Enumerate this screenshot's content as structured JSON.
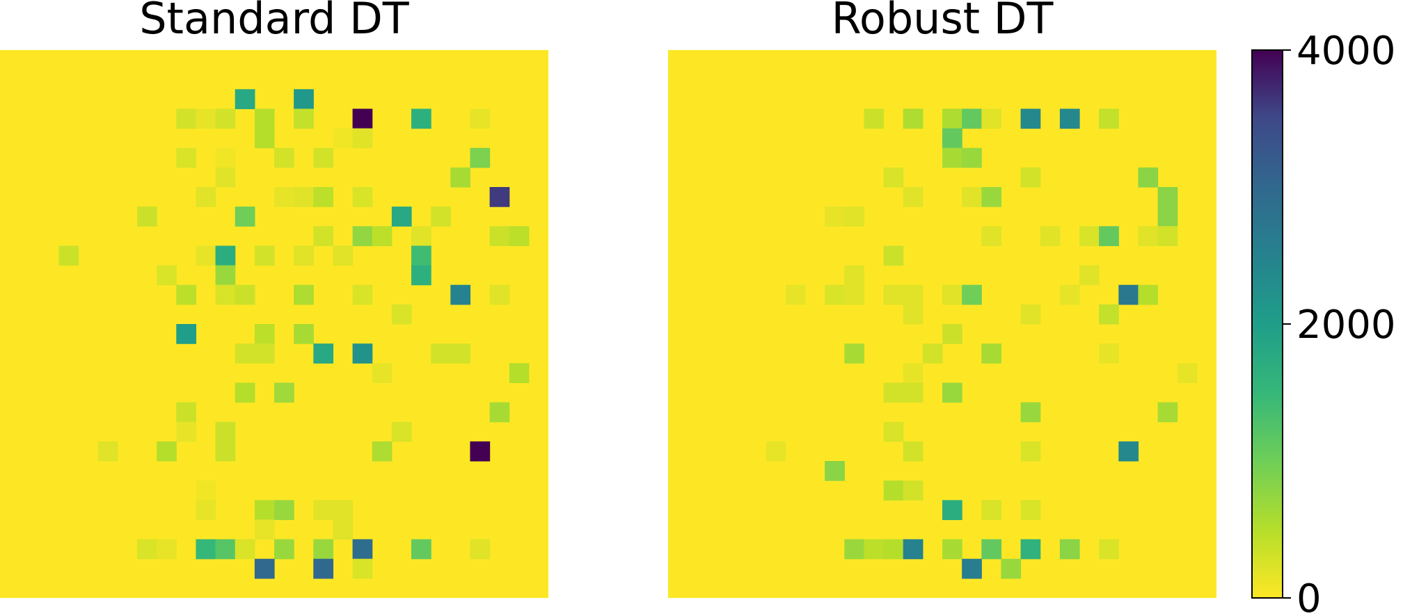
{
  "chart_data": {
    "type": "heatmap",
    "panels": [
      {
        "title": "Standard DT",
        "grid_size": [
          28,
          28
        ],
        "background_value": 0,
        "cells": [
          {
            "row": 2,
            "col": 12,
            "value": 1800
          },
          {
            "row": 2,
            "col": 15,
            "value": 2100
          },
          {
            "row": 3,
            "col": 9,
            "value": 300
          },
          {
            "row": 3,
            "col": 10,
            "value": 150
          },
          {
            "row": 3,
            "col": 11,
            "value": 300
          },
          {
            "row": 3,
            "col": 13,
            "value": 500
          },
          {
            "row": 3,
            "col": 15,
            "value": 400
          },
          {
            "row": 3,
            "col": 18,
            "value": 4000
          },
          {
            "row": 3,
            "col": 21,
            "value": 1650
          },
          {
            "row": 3,
            "col": 24,
            "value": 150
          },
          {
            "row": 4,
            "col": 13,
            "value": 500
          },
          {
            "row": 4,
            "col": 17,
            "value": 80
          },
          {
            "row": 4,
            "col": 18,
            "value": 200
          },
          {
            "row": 5,
            "col": 9,
            "value": 250
          },
          {
            "row": 5,
            "col": 11,
            "value": 80
          },
          {
            "row": 5,
            "col": 14,
            "value": 300
          },
          {
            "row": 5,
            "col": 16,
            "value": 300
          },
          {
            "row": 5,
            "col": 24,
            "value": 900
          },
          {
            "row": 6,
            "col": 11,
            "value": 200
          },
          {
            "row": 6,
            "col": 23,
            "value": 600
          },
          {
            "row": 7,
            "col": 10,
            "value": 200
          },
          {
            "row": 7,
            "col": 14,
            "value": 150
          },
          {
            "row": 7,
            "col": 15,
            "value": 200
          },
          {
            "row": 7,
            "col": 16,
            "value": 450
          },
          {
            "row": 7,
            "col": 18,
            "value": 250
          },
          {
            "row": 7,
            "col": 25,
            "value": 3600
          },
          {
            "row": 8,
            "col": 7,
            "value": 350
          },
          {
            "row": 8,
            "col": 12,
            "value": 1000
          },
          {
            "row": 8,
            "col": 20,
            "value": 1800
          },
          {
            "row": 8,
            "col": 22,
            "value": 300
          },
          {
            "row": 9,
            "col": 16,
            "value": 300
          },
          {
            "row": 9,
            "col": 18,
            "value": 750
          },
          {
            "row": 9,
            "col": 19,
            "value": 450
          },
          {
            "row": 9,
            "col": 21,
            "value": 200
          },
          {
            "row": 9,
            "col": 25,
            "value": 350
          },
          {
            "row": 9,
            "col": 26,
            "value": 450
          },
          {
            "row": 10,
            "col": 3,
            "value": 350
          },
          {
            "row": 10,
            "col": 10,
            "value": 150
          },
          {
            "row": 10,
            "col": 11,
            "value": 1700
          },
          {
            "row": 10,
            "col": 13,
            "value": 300
          },
          {
            "row": 10,
            "col": 15,
            "value": 200
          },
          {
            "row": 10,
            "col": 17,
            "value": 200
          },
          {
            "row": 10,
            "col": 21,
            "value": 1400
          },
          {
            "row": 11,
            "col": 8,
            "value": 250
          },
          {
            "row": 11,
            "col": 11,
            "value": 700
          },
          {
            "row": 11,
            "col": 21,
            "value": 1650
          },
          {
            "row": 12,
            "col": 9,
            "value": 450
          },
          {
            "row": 12,
            "col": 11,
            "value": 250
          },
          {
            "row": 12,
            "col": 12,
            "value": 350
          },
          {
            "row": 12,
            "col": 15,
            "value": 550
          },
          {
            "row": 12,
            "col": 18,
            "value": 250
          },
          {
            "row": 12,
            "col": 23,
            "value": 2500
          },
          {
            "row": 12,
            "col": 25,
            "value": 200
          },
          {
            "row": 13,
            "col": 20,
            "value": 250
          },
          {
            "row": 14,
            "col": 9,
            "value": 2000
          },
          {
            "row": 14,
            "col": 13,
            "value": 450
          },
          {
            "row": 14,
            "col": 15,
            "value": 600
          },
          {
            "row": 15,
            "col": 12,
            "value": 300
          },
          {
            "row": 15,
            "col": 13,
            "value": 300
          },
          {
            "row": 15,
            "col": 16,
            "value": 1800
          },
          {
            "row": 15,
            "col": 18,
            "value": 2200
          },
          {
            "row": 15,
            "col": 22,
            "value": 300
          },
          {
            "row": 15,
            "col": 23,
            "value": 300
          },
          {
            "row": 16,
            "col": 19,
            "value": 150
          },
          {
            "row": 16,
            "col": 26,
            "value": 500
          },
          {
            "row": 17,
            "col": 12,
            "value": 500
          },
          {
            "row": 17,
            "col": 14,
            "value": 650
          },
          {
            "row": 18,
            "col": 9,
            "value": 350
          },
          {
            "row": 18,
            "col": 25,
            "value": 600
          },
          {
            "row": 19,
            "col": 9,
            "value": 150
          },
          {
            "row": 19,
            "col": 11,
            "value": 350
          },
          {
            "row": 19,
            "col": 20,
            "value": 250
          },
          {
            "row": 20,
            "col": 5,
            "value": 200
          },
          {
            "row": 20,
            "col": 8,
            "value": 500
          },
          {
            "row": 20,
            "col": 11,
            "value": 350
          },
          {
            "row": 20,
            "col": 19,
            "value": 550
          },
          {
            "row": 20,
            "col": 24,
            "value": 4000
          },
          {
            "row": 22,
            "col": 10,
            "value": 80
          },
          {
            "row": 23,
            "col": 10,
            "value": 150
          },
          {
            "row": 23,
            "col": 13,
            "value": 500
          },
          {
            "row": 23,
            "col": 14,
            "value": 700
          },
          {
            "row": 23,
            "col": 16,
            "value": 200
          },
          {
            "row": 23,
            "col": 17,
            "value": 200
          },
          {
            "row": 24,
            "col": 13,
            "value": 150
          },
          {
            "row": 24,
            "col": 17,
            "value": 200
          },
          {
            "row": 25,
            "col": 7,
            "value": 250
          },
          {
            "row": 25,
            "col": 8,
            "value": 150
          },
          {
            "row": 25,
            "col": 10,
            "value": 1500
          },
          {
            "row": 25,
            "col": 11,
            "value": 1200
          },
          {
            "row": 25,
            "col": 12,
            "value": 250
          },
          {
            "row": 25,
            "col": 14,
            "value": 700
          },
          {
            "row": 25,
            "col": 16,
            "value": 700
          },
          {
            "row": 25,
            "col": 18,
            "value": 2900
          },
          {
            "row": 25,
            "col": 21,
            "value": 1100
          },
          {
            "row": 25,
            "col": 24,
            "value": 200
          },
          {
            "row": 26,
            "col": 13,
            "value": 3000
          },
          {
            "row": 26,
            "col": 16,
            "value": 3000
          },
          {
            "row": 26,
            "col": 18,
            "value": 250
          }
        ]
      },
      {
        "title": "Robust DT",
        "grid_size": [
          28,
          28
        ],
        "background_value": 0,
        "cells": [
          {
            "row": 3,
            "col": 10,
            "value": 350
          },
          {
            "row": 3,
            "col": 12,
            "value": 550
          },
          {
            "row": 3,
            "col": 14,
            "value": 550
          },
          {
            "row": 3,
            "col": 15,
            "value": 1100
          },
          {
            "row": 3,
            "col": 16,
            "value": 200
          },
          {
            "row": 3,
            "col": 18,
            "value": 2400
          },
          {
            "row": 3,
            "col": 20,
            "value": 2400
          },
          {
            "row": 3,
            "col": 22,
            "value": 400
          },
          {
            "row": 4,
            "col": 14,
            "value": 1100
          },
          {
            "row": 5,
            "col": 14,
            "value": 600
          },
          {
            "row": 5,
            "col": 15,
            "value": 700
          },
          {
            "row": 6,
            "col": 11,
            "value": 250
          },
          {
            "row": 6,
            "col": 18,
            "value": 300
          },
          {
            "row": 6,
            "col": 24,
            "value": 800
          },
          {
            "row": 7,
            "col": 12,
            "value": 200
          },
          {
            "row": 7,
            "col": 15,
            "value": 200
          },
          {
            "row": 7,
            "col": 16,
            "value": 700
          },
          {
            "row": 7,
            "col": 25,
            "value": 800
          },
          {
            "row": 8,
            "col": 8,
            "value": 150
          },
          {
            "row": 8,
            "col": 9,
            "value": 200
          },
          {
            "row": 8,
            "col": 25,
            "value": 800
          },
          {
            "row": 9,
            "col": 16,
            "value": 200
          },
          {
            "row": 9,
            "col": 19,
            "value": 200
          },
          {
            "row": 9,
            "col": 21,
            "value": 250
          },
          {
            "row": 9,
            "col": 22,
            "value": 1100
          },
          {
            "row": 9,
            "col": 24,
            "value": 200
          },
          {
            "row": 9,
            "col": 25,
            "value": 300
          },
          {
            "row": 10,
            "col": 11,
            "value": 350
          },
          {
            "row": 11,
            "col": 9,
            "value": 200
          },
          {
            "row": 11,
            "col": 21,
            "value": 200
          },
          {
            "row": 12,
            "col": 6,
            "value": 150
          },
          {
            "row": 12,
            "col": 8,
            "value": 250
          },
          {
            "row": 12,
            "col": 9,
            "value": 200
          },
          {
            "row": 12,
            "col": 11,
            "value": 200
          },
          {
            "row": 12,
            "col": 12,
            "value": 200
          },
          {
            "row": 12,
            "col": 14,
            "value": 200
          },
          {
            "row": 12,
            "col": 15,
            "value": 1000
          },
          {
            "row": 12,
            "col": 20,
            "value": 150
          },
          {
            "row": 12,
            "col": 23,
            "value": 2700
          },
          {
            "row": 12,
            "col": 24,
            "value": 500
          },
          {
            "row": 13,
            "col": 12,
            "value": 200
          },
          {
            "row": 13,
            "col": 18,
            "value": 200
          },
          {
            "row": 13,
            "col": 22,
            "value": 400
          },
          {
            "row": 14,
            "col": 14,
            "value": 350
          },
          {
            "row": 15,
            "col": 9,
            "value": 600
          },
          {
            "row": 15,
            "col": 13,
            "value": 300
          },
          {
            "row": 15,
            "col": 16,
            "value": 600
          },
          {
            "row": 15,
            "col": 22,
            "value": 150
          },
          {
            "row": 16,
            "col": 12,
            "value": 150
          },
          {
            "row": 16,
            "col": 26,
            "value": 150
          },
          {
            "row": 17,
            "col": 11,
            "value": 300
          },
          {
            "row": 17,
            "col": 12,
            "value": 300
          },
          {
            "row": 17,
            "col": 14,
            "value": 700
          },
          {
            "row": 18,
            "col": 18,
            "value": 700
          },
          {
            "row": 18,
            "col": 25,
            "value": 600
          },
          {
            "row": 19,
            "col": 11,
            "value": 250
          },
          {
            "row": 20,
            "col": 5,
            "value": 150
          },
          {
            "row": 20,
            "col": 12,
            "value": 300
          },
          {
            "row": 20,
            "col": 18,
            "value": 250
          },
          {
            "row": 20,
            "col": 23,
            "value": 2400
          },
          {
            "row": 21,
            "col": 8,
            "value": 800
          },
          {
            "row": 22,
            "col": 11,
            "value": 500
          },
          {
            "row": 22,
            "col": 12,
            "value": 300
          },
          {
            "row": 23,
            "col": 14,
            "value": 1700
          },
          {
            "row": 23,
            "col": 16,
            "value": 250
          },
          {
            "row": 23,
            "col": 18,
            "value": 250
          },
          {
            "row": 25,
            "col": 9,
            "value": 700
          },
          {
            "row": 25,
            "col": 10,
            "value": 450
          },
          {
            "row": 25,
            "col": 11,
            "value": 500
          },
          {
            "row": 25,
            "col": 12,
            "value": 2500
          },
          {
            "row": 25,
            "col": 14,
            "value": 600
          },
          {
            "row": 25,
            "col": 16,
            "value": 1100
          },
          {
            "row": 25,
            "col": 18,
            "value": 1600
          },
          {
            "row": 25,
            "col": 20,
            "value": 800
          },
          {
            "row": 25,
            "col": 22,
            "value": 250
          },
          {
            "row": 26,
            "col": 15,
            "value": 2600
          },
          {
            "row": 26,
            "col": 17,
            "value": 700
          }
        ]
      }
    ],
    "colorbar": {
      "colormap": "viridis_r",
      "range": [
        0,
        4000
      ],
      "ticks": [
        0,
        2000,
        4000
      ],
      "tick_labels": [
        "0",
        "2000",
        "4000"
      ]
    }
  }
}
